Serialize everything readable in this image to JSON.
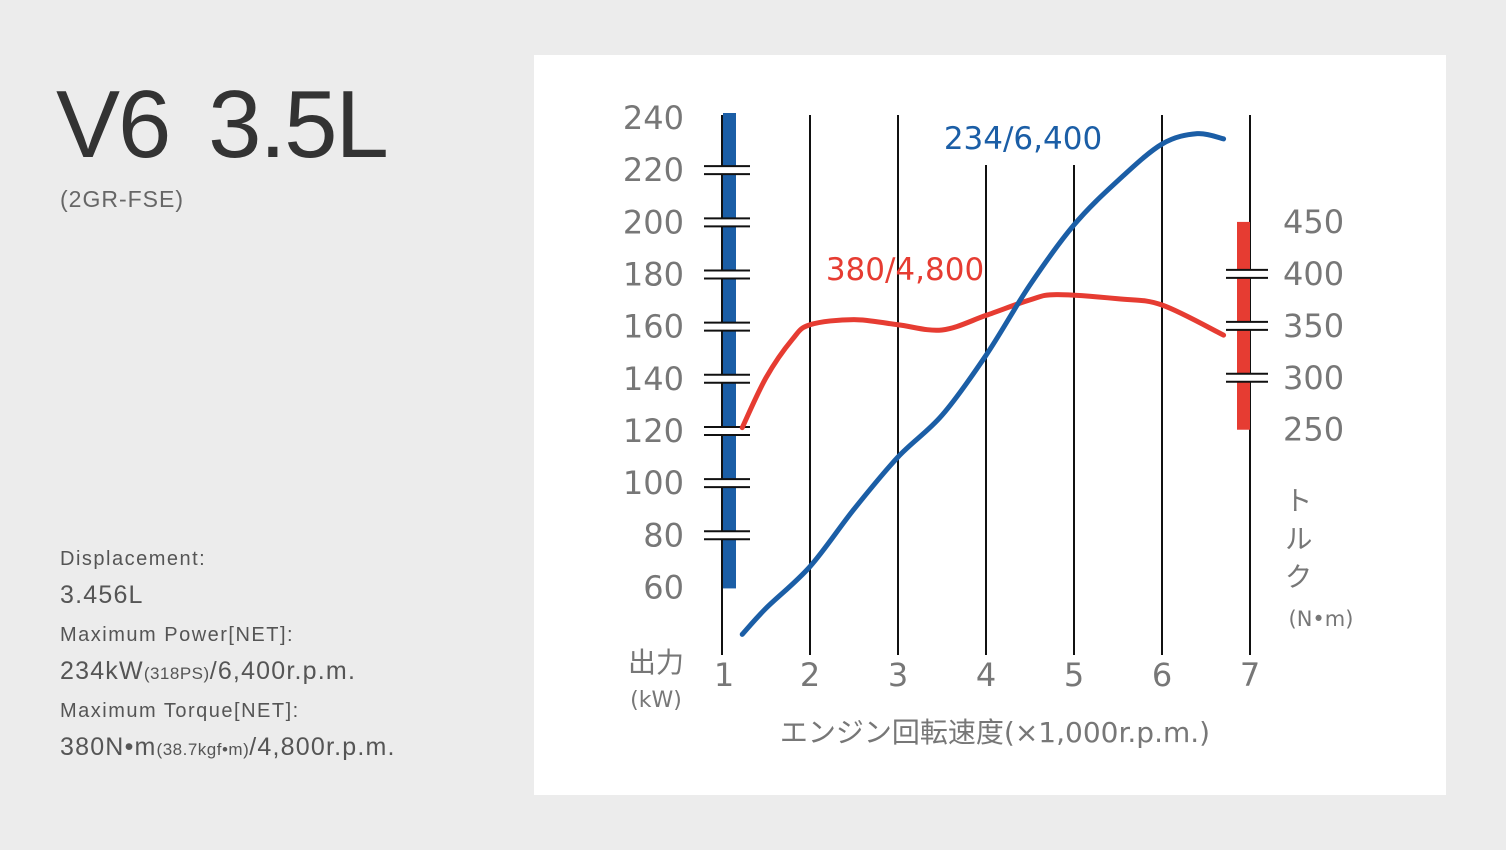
{
  "title": "V6 3.5L",
  "subtitle": "(2GR-FSE)",
  "specs": [
    {
      "label": "Displacement:",
      "value": "3.456L"
    },
    {
      "label": "Maximum Power[NET]:",
      "value": "234kW",
      "value_note": "(318PS)",
      "value_rest": "/6,400r.p.m."
    },
    {
      "label": "Maximum Torque[NET]:",
      "value": "380N•m",
      "value_note": "(38.7kgf•m)",
      "value_rest": "/4,800r.p.m."
    }
  ],
  "chart_data": {
    "type": "line",
    "x_label": "エンジン回転速度(×1,000r.p.m.)",
    "y_label": "出力",
    "y_unit": "(kW)",
    "y2_label": "トルク",
    "y2_unit": "(N•m)",
    "xlim": [
      1,
      7
    ],
    "xticks": [
      1,
      2,
      3,
      4,
      5,
      6,
      7
    ],
    "ylim": [
      36,
      240
    ],
    "yticks": [
      60,
      80,
      100,
      120,
      140,
      160,
      180,
      200,
      220,
      240
    ],
    "y2lim": [
      38,
      550
    ],
    "y2ticks": [
      250,
      300,
      350,
      400,
      450
    ],
    "y_bar_color": "#1b5ea6",
    "y2_bar_color": "#e63c32",
    "series": [
      {
        "color": "#1b5ea6",
        "x": [
          1.23,
          1.5,
          2.0,
          2.5,
          3.0,
          3.5,
          4.0,
          4.5,
          5.0,
          5.5,
          6.0,
          6.4,
          6.7
        ],
        "values": [
          42,
          52,
          68,
          90,
          110,
          126,
          149,
          176,
          199,
          216,
          230,
          234,
          232
        ]
      },
      {
        "color": "#e63c32",
        "axis": "y2",
        "x": [
          1.23,
          1.5,
          1.8,
          2.0,
          2.5,
          3.0,
          3.5,
          4.0,
          4.5,
          4.8,
          5.5,
          6.0,
          6.7
        ],
        "values": [
          252,
          300,
          337,
          351,
          356,
          351,
          346,
          360,
          375,
          380,
          376,
          370,
          341
        ]
      }
    ],
    "annotations": [
      {
        "text": "234/6,400",
        "color": "#1b5ea6"
      },
      {
        "text": "380/4,800",
        "color": "#e63c32"
      }
    ]
  }
}
